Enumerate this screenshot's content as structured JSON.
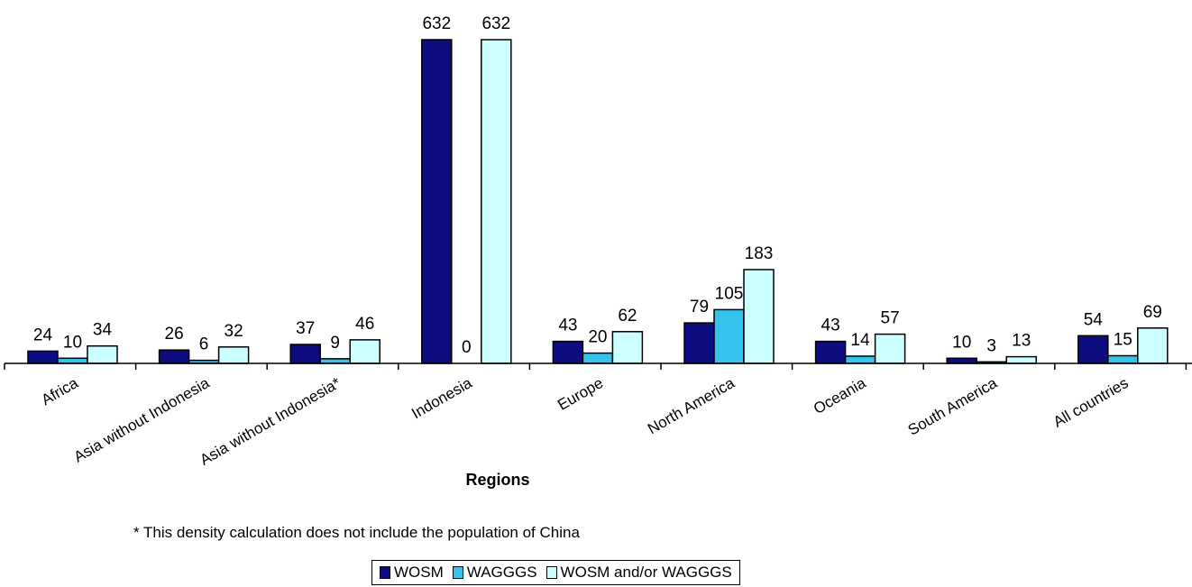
{
  "chart_data": {
    "type": "bar",
    "categories": [
      "Africa",
      "Asia without Indonesia",
      "Asia without Indonesia*",
      "Indonesia",
      "Europe",
      "North America",
      "Oceania",
      "South America",
      "All countries"
    ],
    "series": [
      {
        "name": "WOSM",
        "color": "#0c0c80",
        "values": [
          24,
          26,
          37,
          632,
          43,
          79,
          43,
          10,
          54
        ]
      },
      {
        "name": "WAGGGS",
        "color": "#35c3ee",
        "values": [
          10,
          6,
          9,
          0,
          20,
          105,
          14,
          3,
          15
        ]
      },
      {
        "name": "WOSM and/or WAGGGS",
        "color": "#ccffff",
        "values": [
          34,
          32,
          46,
          632,
          62,
          183,
          57,
          13,
          69
        ]
      }
    ],
    "xlabel": "Regions",
    "ylabel": "",
    "ylim": [
      0,
      632
    ],
    "grid": false,
    "legend_position": "bottom"
  },
  "footnote": "* This density calculation does not include the population of China"
}
